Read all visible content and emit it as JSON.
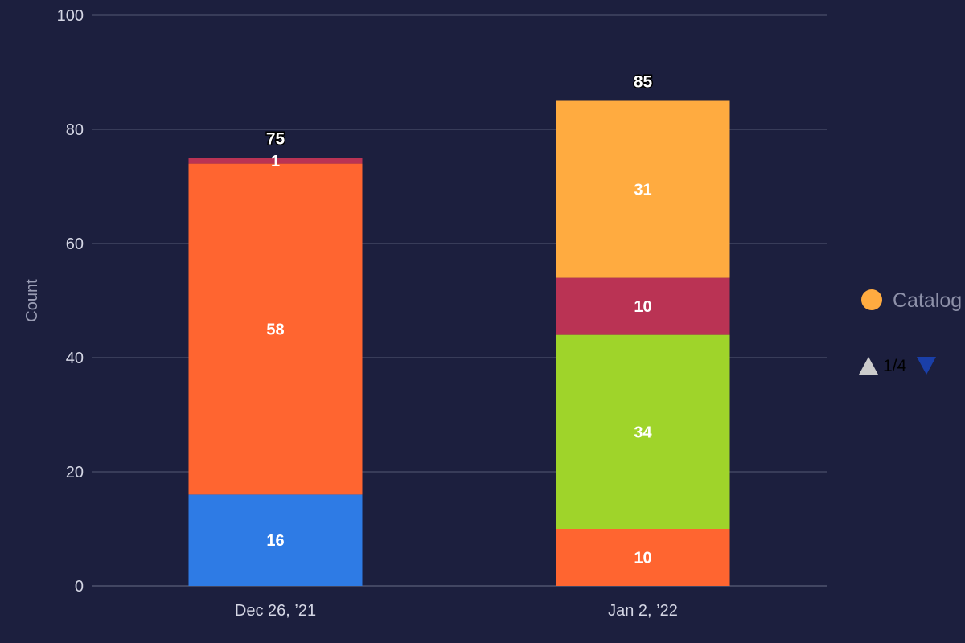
{
  "chart_data": {
    "type": "bar",
    "stacked": true,
    "categories": [
      "Dec 26, ’21",
      "Jan 2, ’22"
    ],
    "ylabel": "Count",
    "xlabel": "",
    "ylim": [
      0,
      100
    ],
    "yticks": [
      0,
      20,
      40,
      60,
      80,
      100
    ],
    "grid": true,
    "totals": [
      75,
      85
    ],
    "stacks": [
      [
        {
          "value": 16,
          "color": "#2e7be5"
        },
        {
          "value": 58,
          "color": "#ff6530"
        },
        {
          "value": 1,
          "color": "#ba3354"
        }
      ],
      [
        {
          "value": 10,
          "color": "#ff6530"
        },
        {
          "value": 34,
          "color": "#9fd42a"
        },
        {
          "value": 10,
          "color": "#ba3354"
        },
        {
          "value": 31,
          "color": "#ffab40"
        }
      ]
    ],
    "legend": {
      "position": "right",
      "visible_entries": [
        {
          "name": "Catalog",
          "color": "#ffab40"
        }
      ],
      "pager": {
        "text": "1/4",
        "up_color": "#cccccc",
        "down_color": "#1a3fa8"
      }
    }
  }
}
